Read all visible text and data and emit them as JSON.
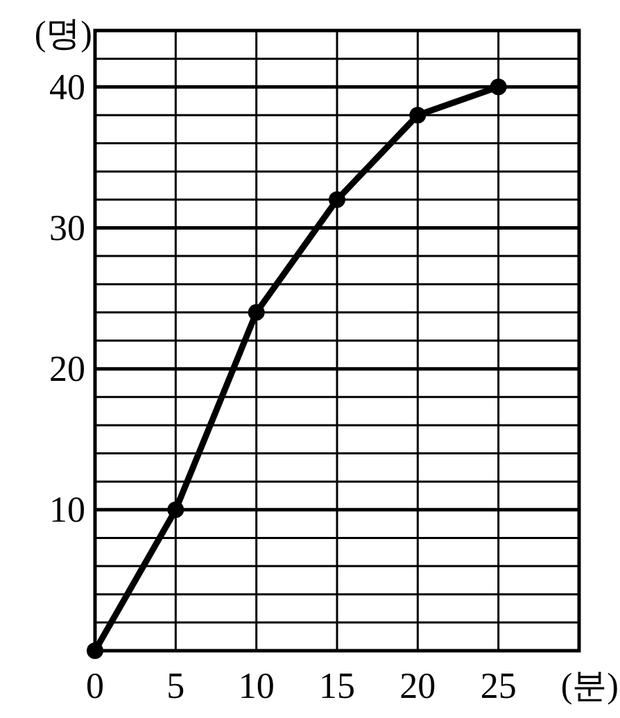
{
  "chart_data": {
    "type": "line",
    "xlabel": "(분)",
    "ylabel": "(명)",
    "x": [
      0,
      5,
      10,
      15,
      20,
      25
    ],
    "series": [
      {
        "color": "#000000",
        "values": [
          0,
          10,
          24,
          32,
          38,
          40
        ]
      }
    ],
    "xlim": [
      0,
      30
    ],
    "ylim": [
      0,
      44
    ],
    "xticks": [
      0,
      5,
      10,
      15,
      20,
      25,
      {
        "value": 30,
        "label": null
      }
    ],
    "yticks": [
      {
        "value": 0,
        "label": null
      },
      {
        "value": 2,
        "label": null
      },
      {
        "value": 4,
        "label": null
      },
      {
        "value": 6,
        "label": null
      },
      {
        "value": 8,
        "label": null
      },
      10,
      {
        "value": 12,
        "label": null
      },
      {
        "value": 14,
        "label": null
      },
      {
        "value": 16,
        "label": null
      },
      {
        "value": 18,
        "label": null
      },
      20,
      {
        "value": 22,
        "label": null
      },
      {
        "value": 24,
        "label": null
      },
      {
        "value": 26,
        "label": null
      },
      {
        "value": 28,
        "label": null
      },
      30,
      {
        "value": 32,
        "label": null
      },
      {
        "value": 34,
        "label": null
      },
      {
        "value": 36,
        "label": null
      },
      {
        "value": 38,
        "label": null
      },
      40,
      {
        "value": 42,
        "label": null
      },
      {
        "value": 44,
        "label": null
      }
    ],
    "grid": true,
    "marker": "circle",
    "line_style": "solid"
  }
}
